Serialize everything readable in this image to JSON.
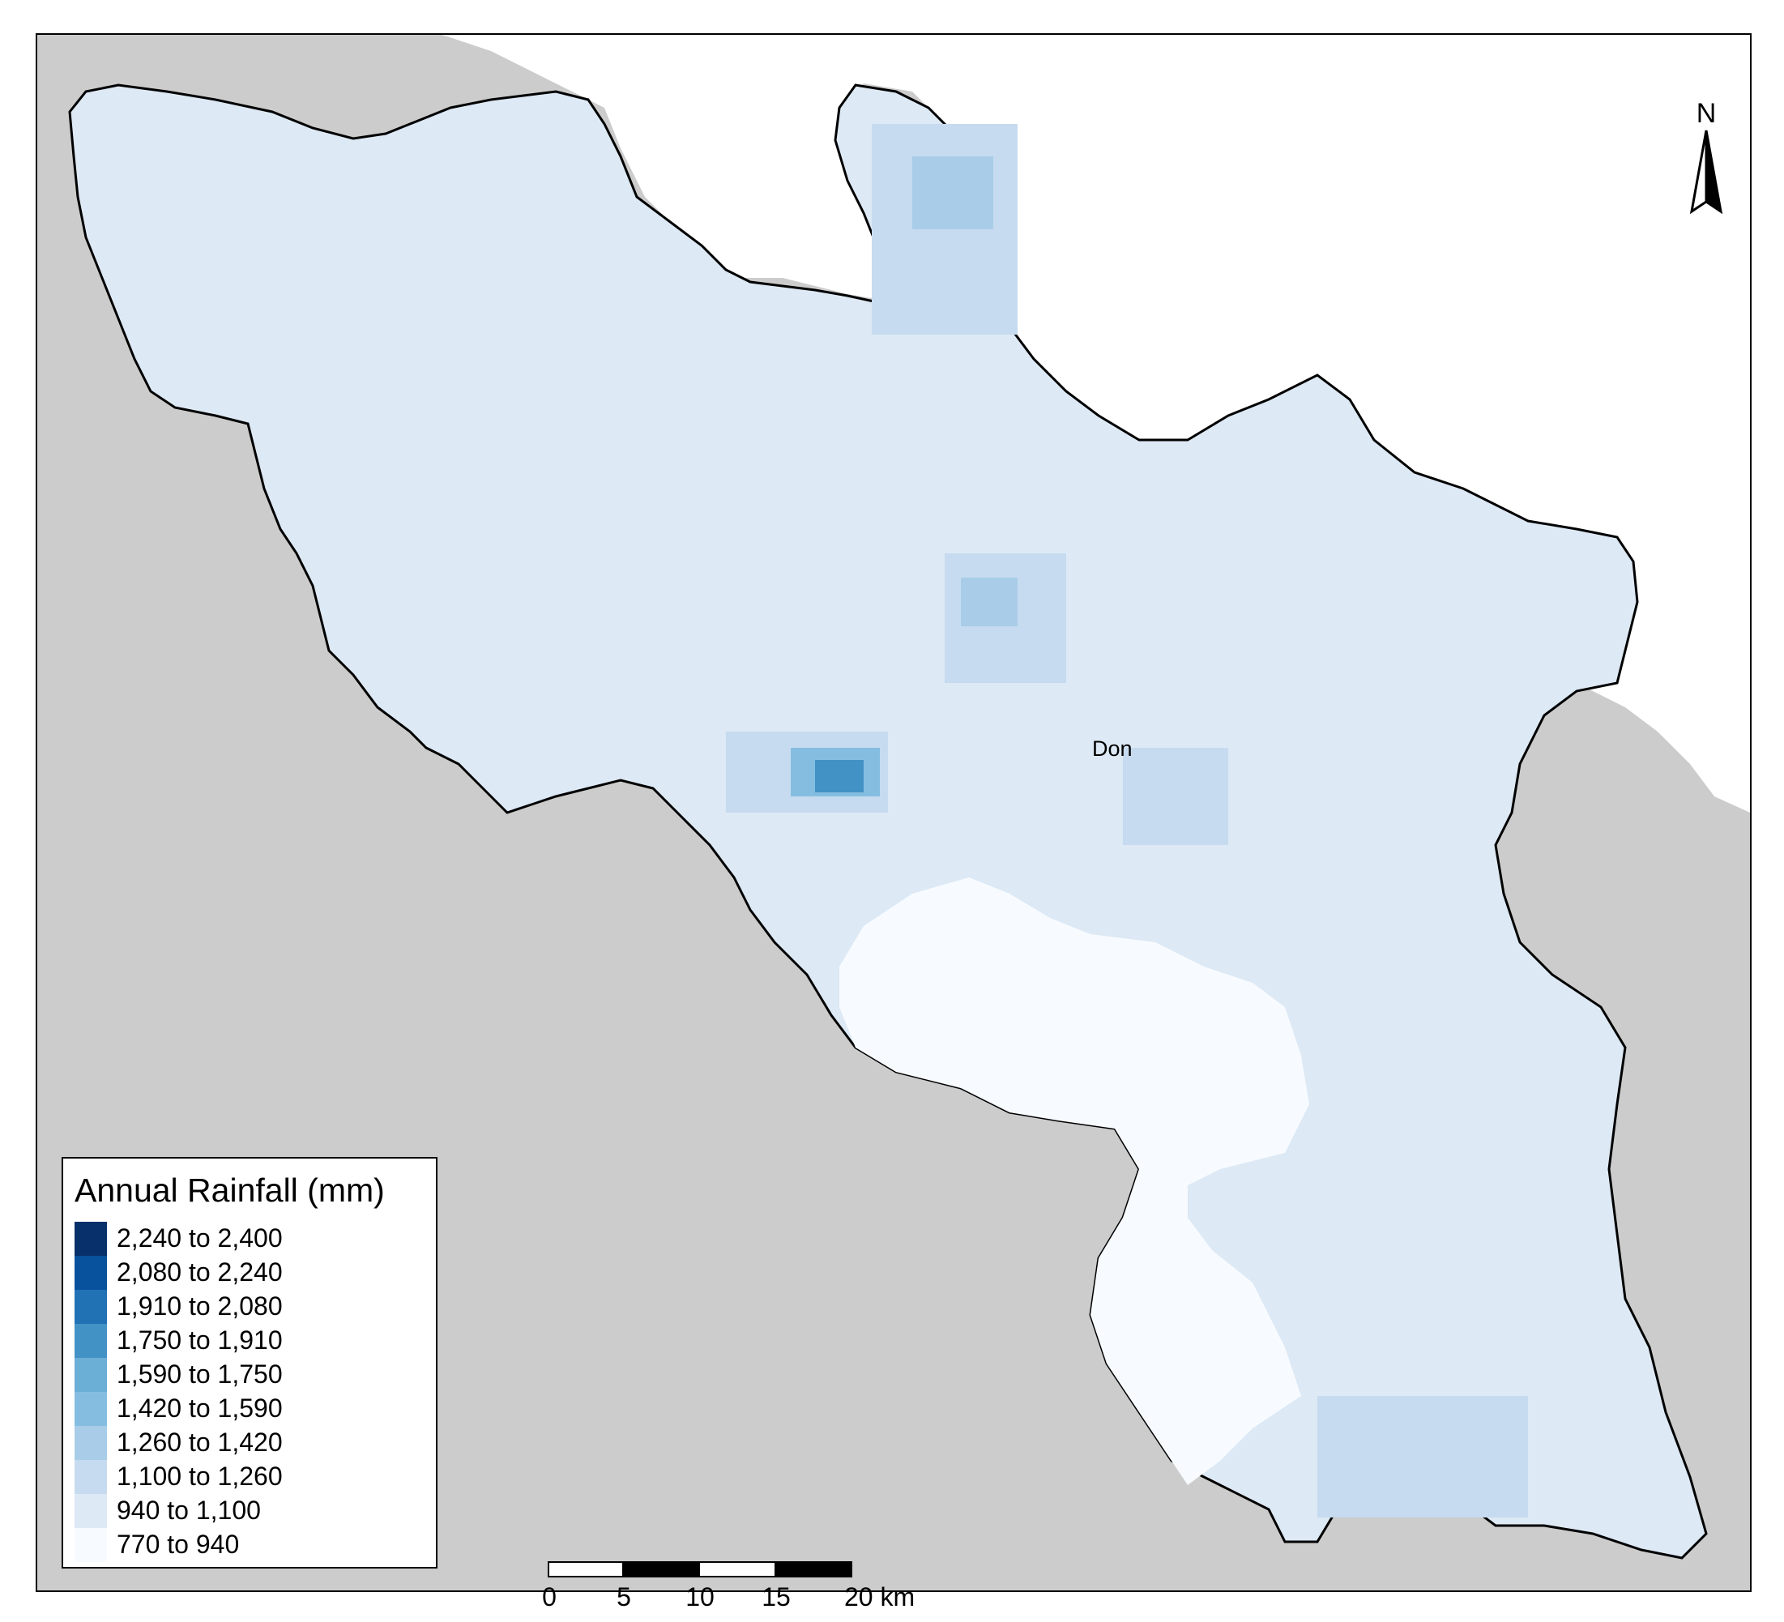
{
  "map": {
    "place_label": "Don",
    "north_label": "N",
    "colors": {
      "background_land": "#cccccc",
      "sea": "#ffffff",
      "outline": "#000000"
    }
  },
  "legend": {
    "title": "Annual Rainfall (mm)",
    "classes": [
      {
        "label": "2,240 to 2,400",
        "color": "#08306b"
      },
      {
        "label": "2,080 to 2,240",
        "color": "#08519c"
      },
      {
        "label": "1,910 to 2,080",
        "color": "#2171b5"
      },
      {
        "label": "1,750 to 1,910",
        "color": "#4292c6"
      },
      {
        "label": "1,590 to 1,750",
        "color": "#6baed6"
      },
      {
        "label": "1,420 to 1,590",
        "color": "#85bde0"
      },
      {
        "label": "1,260 to 1,420",
        "color": "#a9cde8"
      },
      {
        "label": "1,100 to 1,260",
        "color": "#c6dbef"
      },
      {
        "label": "940 to 1,100",
        "color": "#dde9f5"
      },
      {
        "label": "770 to 940",
        "color": "#f7fbff"
      }
    ]
  },
  "scalebar": {
    "ticks": [
      "0",
      "5",
      "10",
      "15",
      "20 km"
    ]
  }
}
